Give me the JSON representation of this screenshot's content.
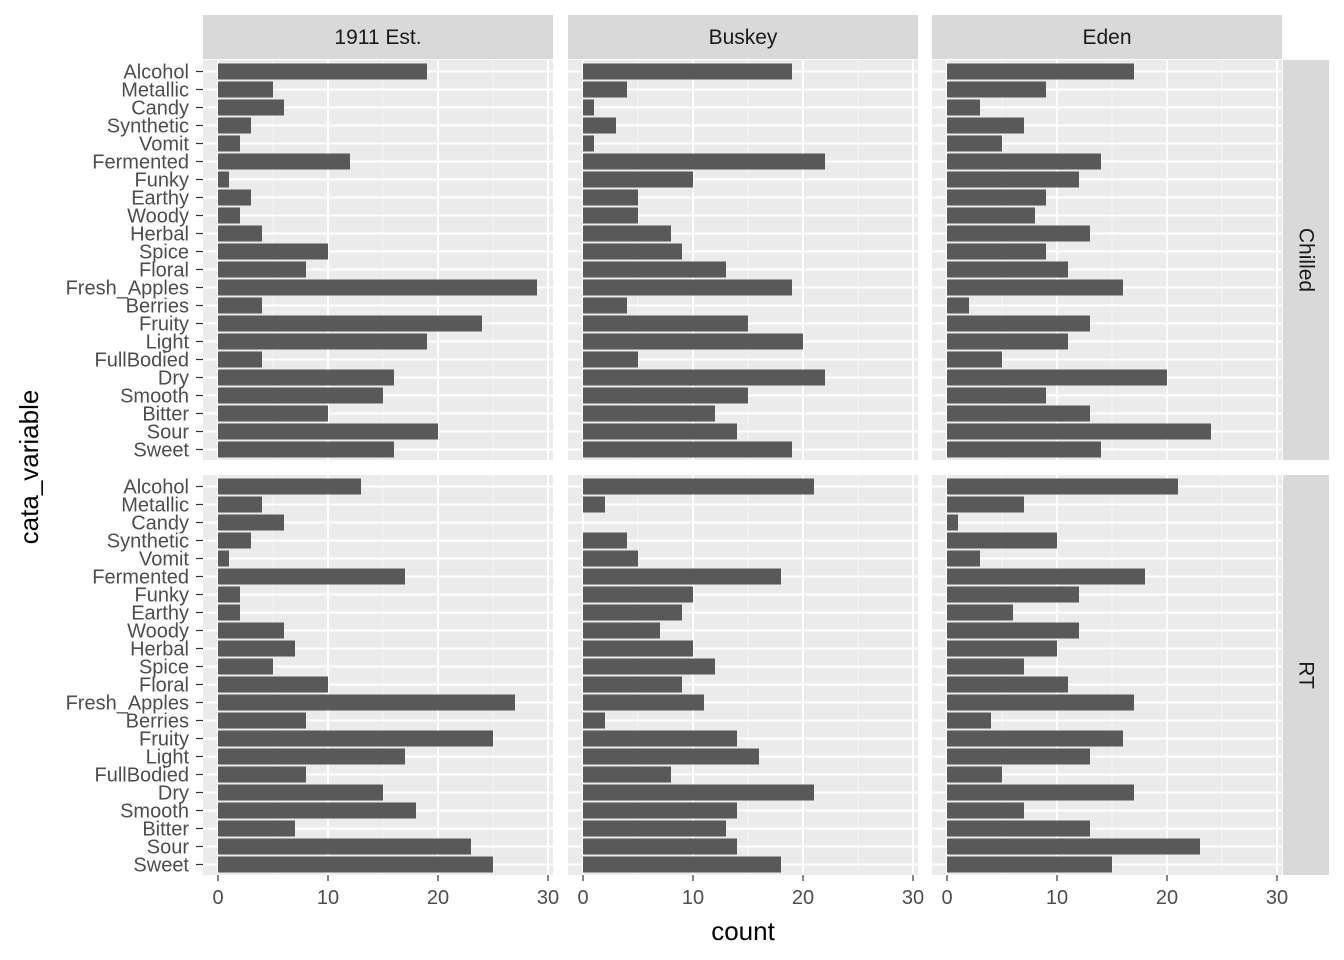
{
  "chart_data": {
    "type": "bar",
    "orientation": "horizontal",
    "xlabel": "count",
    "ylabel": "cata_variable",
    "xlim": [
      0,
      30
    ],
    "xticks": [
      0,
      10,
      20,
      30
    ],
    "grid": true,
    "bar_color": "#595959",
    "panel_bg": "#ebebeb",
    "strip_bg": "#d9d9d9",
    "column_facets": [
      "1911 Est.",
      "Buskey",
      "Eden"
    ],
    "row_facets": [
      "Chilled",
      "RT"
    ],
    "categories": [
      "Alcohol",
      "Metallic",
      "Candy",
      "Synthetic",
      "Vomit",
      "Fermented",
      "Funky",
      "Earthy",
      "Woody",
      "Herbal",
      "Spice",
      "Floral",
      "Fresh_Apples",
      "Berries",
      "Fruity",
      "Light",
      "FullBodied",
      "Dry",
      "Smooth",
      "Bitter",
      "Sour",
      "Sweet"
    ],
    "panels": [
      {
        "column": "1911 Est.",
        "row": "Chilled",
        "values": [
          19,
          5,
          6,
          3,
          2,
          12,
          1,
          3,
          2,
          4,
          10,
          8,
          29,
          4,
          24,
          19,
          4,
          16,
          15,
          10,
          20,
          16
        ]
      },
      {
        "column": "Buskey",
        "row": "Chilled",
        "values": [
          19,
          4,
          1,
          3,
          1,
          22,
          10,
          5,
          5,
          8,
          9,
          13,
          19,
          4,
          15,
          20,
          5,
          22,
          15,
          12,
          14,
          19
        ]
      },
      {
        "column": "Eden",
        "row": "Chilled",
        "values": [
          17,
          9,
          3,
          7,
          5,
          14,
          12,
          9,
          8,
          13,
          9,
          11,
          16,
          2,
          13,
          11,
          5,
          20,
          9,
          13,
          24,
          14
        ]
      },
      {
        "column": "1911 Est.",
        "row": "RT",
        "values": [
          13,
          4,
          6,
          3,
          1,
          17,
          2,
          2,
          6,
          7,
          5,
          10,
          27,
          8,
          25,
          17,
          8,
          15,
          18,
          7,
          23,
          25
        ]
      },
      {
        "column": "Buskey",
        "row": "RT",
        "values": [
          21,
          2,
          0,
          4,
          5,
          18,
          10,
          9,
          7,
          10,
          12,
          9,
          11,
          2,
          14,
          16,
          8,
          21,
          14,
          13,
          14,
          18
        ]
      },
      {
        "column": "Eden",
        "row": "RT",
        "values": [
          21,
          7,
          1,
          10,
          3,
          18,
          12,
          6,
          12,
          10,
          7,
          11,
          17,
          4,
          16,
          13,
          5,
          17,
          7,
          13,
          23,
          15
        ]
      }
    ]
  }
}
